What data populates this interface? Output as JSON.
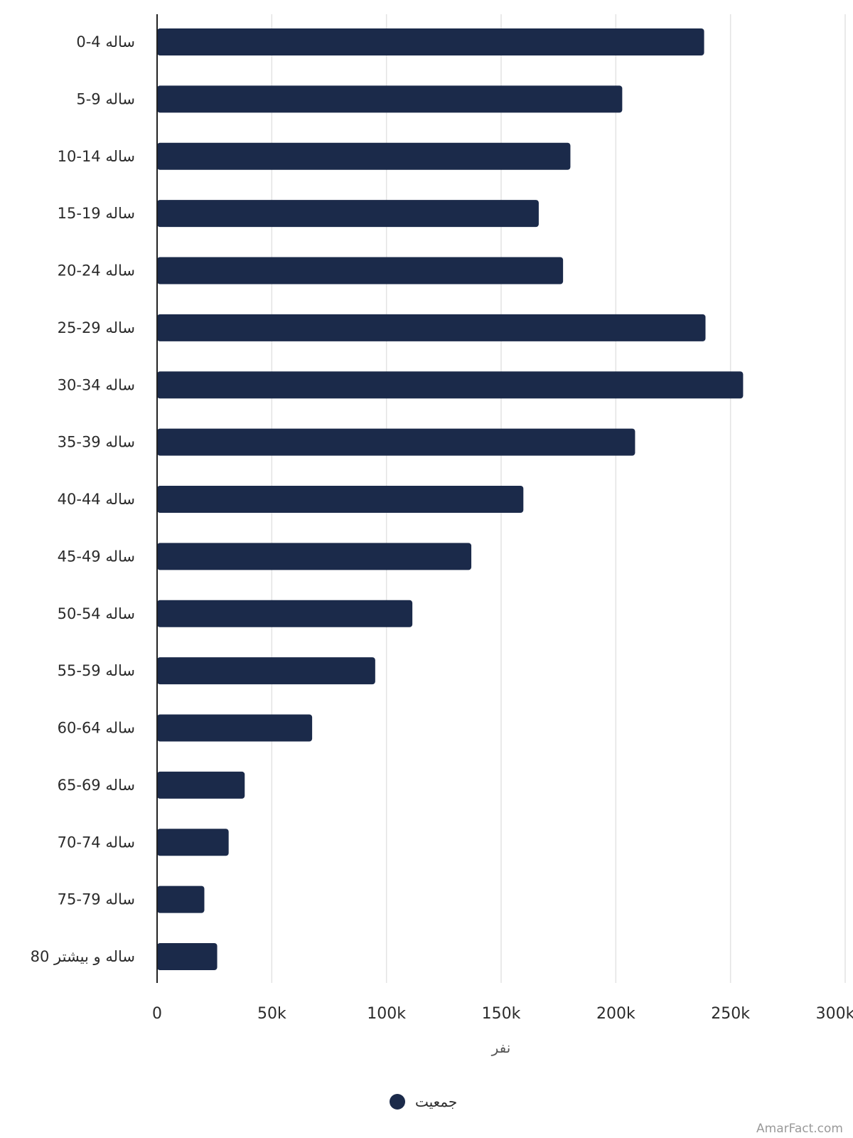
{
  "chart_data": {
    "type": "bar",
    "orientation": "horizontal",
    "categories": [
      "0-4 ساله",
      "5-9 ساله",
      "10-14 ساله",
      "15-19 ساله",
      "20-24 ساله",
      "25-29 ساله",
      "30-34 ساله",
      "35-39 ساله",
      "40-44 ساله",
      "45-49 ساله",
      "50-54 ساله",
      "55-59 ساله",
      "60-64 ساله",
      "65-69 ساله",
      "70-74 ساله",
      "75-79 ساله",
      "80 ساله و بیشتر"
    ],
    "series": [
      {
        "name": "جمعیت",
        "values": [
          238500,
          202800,
          180200,
          166400,
          177000,
          239100,
          255500,
          208400,
          159700,
          137000,
          111300,
          95100,
          67600,
          38200,
          31200,
          20600,
          26200
        ]
      }
    ],
    "xlim": [
      0,
      300000
    ],
    "xticks": [
      0,
      50000,
      100000,
      150000,
      200000,
      250000,
      300000
    ],
    "xtick_labels": [
      "0",
      "50k",
      "100k",
      "150k",
      "200k",
      "250k",
      "300k"
    ],
    "xlabel": "نفر",
    "ylabel": "",
    "title": "",
    "grid": "vertical",
    "legend_position": "bottom-center",
    "bar_color": "#1b2a4a"
  },
  "watermark": "AmarFact.com"
}
